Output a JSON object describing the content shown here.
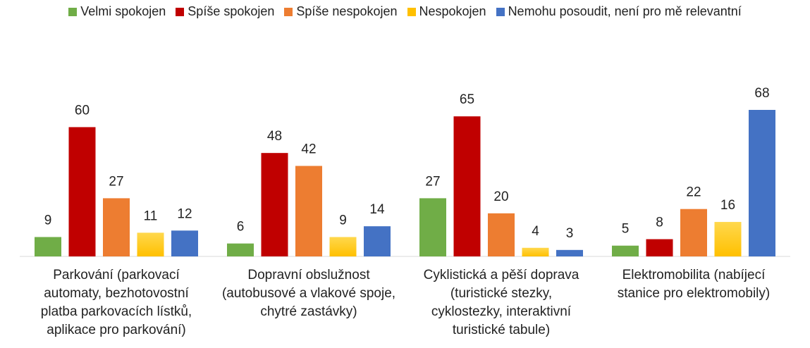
{
  "chart_data": {
    "type": "bar",
    "categories": [
      "Parkování (parkovací automaty, bezhotovostní platba parkovacích lístků, aplikace pro parkování)",
      "Dopravní obslužnost (autobusové a vlakové spoje, chytré zastávky)",
      "Cyklistická a pěší doprava (turistické stezky, cyklostezky, interaktivní turistické tabule)",
      "Elektromobilita (nabíjecí stanice pro elektromobily)"
    ],
    "series": [
      {
        "name": "Velmi spokojen",
        "color": "#70ad47",
        "values": [
          9,
          6,
          27,
          5
        ]
      },
      {
        "name": "Spíše spokojen",
        "color": "#c00000",
        "values": [
          60,
          48,
          65,
          8
        ]
      },
      {
        "name": "Spíše nespokojen",
        "color": "#ed7d31",
        "values": [
          27,
          42,
          20,
          22
        ]
      },
      {
        "name": "Nespokojen",
        "color": "#ffc000",
        "values": [
          11,
          9,
          4,
          16
        ]
      },
      {
        "name": "Nemohu posoudit, není pro mě relevantní",
        "color": "#4472c4",
        "values": [
          12,
          14,
          3,
          68
        ]
      }
    ],
    "legend": "top"
  }
}
